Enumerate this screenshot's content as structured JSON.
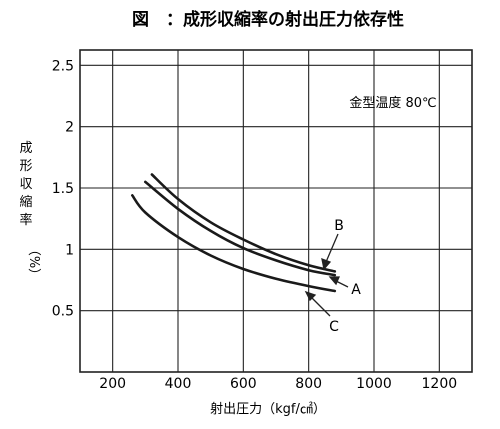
{
  "title": "図　：成形収縮率の射出圧力依存性",
  "chart_data": {
    "type": "line",
    "title": "図　：成形収縮率の射出圧力依存性",
    "xlabel": "射出圧力（kgf/㎠）",
    "ylabel": "成形収縮率（%）",
    "xlim": [
      100,
      1300
    ],
    "ylim": [
      0.0,
      2.625
    ],
    "x_ticks": [
      200,
      400,
      600,
      800,
      1000,
      1200
    ],
    "y_ticks": [
      0.5,
      1,
      1.5,
      2,
      2.5
    ],
    "x_tick_labels": [
      "200",
      "400",
      "600",
      "800",
      "1000",
      "1200"
    ],
    "y_tick_labels": [
      "0.5",
      "1",
      "1.5",
      "2",
      "2.5"
    ],
    "grid": true,
    "annotation": "金型温度 80℃",
    "series": [
      {
        "name": "B",
        "x": [
          320,
          400,
          500,
          600,
          700,
          800,
          880
        ],
        "y": [
          1.61,
          1.41,
          1.22,
          1.08,
          0.96,
          0.87,
          0.82
        ]
      },
      {
        "name": "A",
        "x": [
          300,
          400,
          500,
          600,
          700,
          800,
          880
        ],
        "y": [
          1.55,
          1.33,
          1.15,
          1.01,
          0.91,
          0.83,
          0.79
        ]
      },
      {
        "name": "C",
        "x": [
          260,
          300,
          400,
          500,
          600,
          700,
          800,
          880
        ],
        "y": [
          1.44,
          1.3,
          1.1,
          0.95,
          0.84,
          0.76,
          0.7,
          0.66
        ]
      }
    ]
  }
}
